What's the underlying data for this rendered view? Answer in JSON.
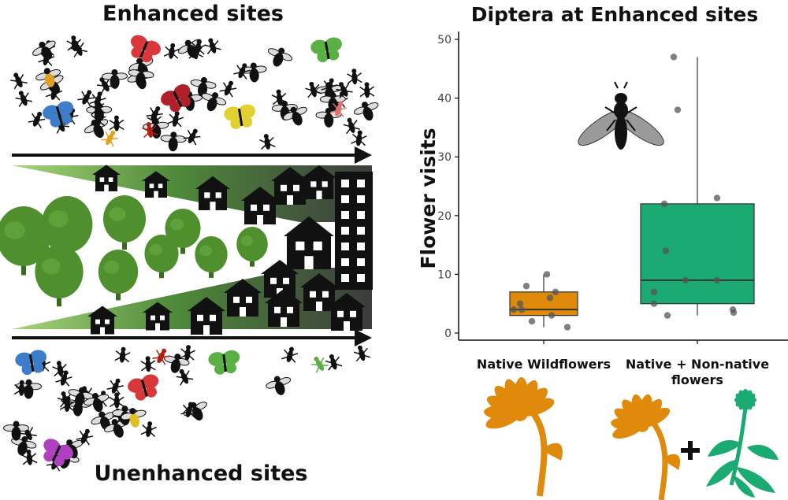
{
  "left_panel": {
    "top_label": "Enhanced sites",
    "bottom_label": "Unenhanced sites",
    "colors": {
      "tree_green": "#4f8f2e",
      "gradient_light": "#a8d67a",
      "gradient_dark": "#3c3c3c",
      "building": "#111111"
    }
  },
  "chart_data": {
    "type": "box",
    "title": "Diptera at Enhanced sites",
    "ylabel": "Flower visits",
    "xlabel": "",
    "ylim": [
      0,
      50
    ],
    "yticks": [
      0,
      10,
      20,
      30,
      40,
      50
    ],
    "grid": false,
    "categories": [
      "Native Wildflowers",
      "Native + Non-native flowers"
    ],
    "series": [
      {
        "category": "Native Wildflowers",
        "color": "#e08a0b",
        "box": {
          "whisker_low": 1,
          "q1": 3,
          "median": 4,
          "q3": 7,
          "whisker_high": 10
        },
        "points": [
          1,
          2,
          3,
          4,
          4,
          5,
          6,
          7,
          8,
          10
        ]
      },
      {
        "category": "Native + Non-native flowers",
        "color": "#1aaa72",
        "box": {
          "whisker_low": 3,
          "q1": 5,
          "median": 9,
          "q3": 22,
          "whisker_high": 47
        },
        "points": [
          3,
          3.5,
          4,
          5,
          7,
          9,
          9,
          14,
          22,
          23,
          38,
          47
        ]
      }
    ],
    "icons": [
      "fly-icon",
      "native-flower-icon",
      "non-native-flower-icon"
    ]
  }
}
